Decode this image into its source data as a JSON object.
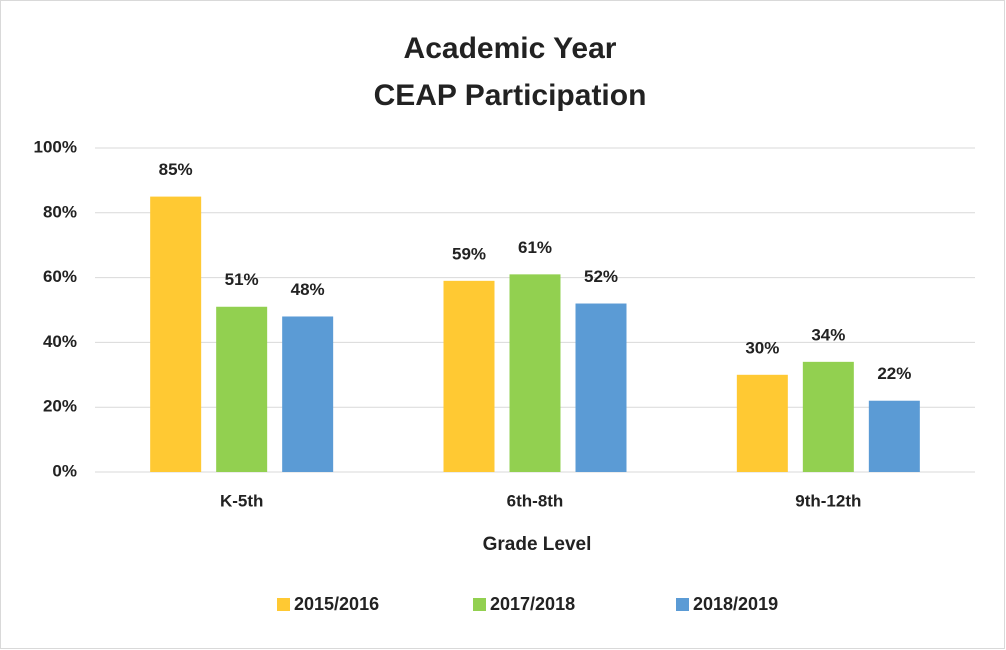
{
  "chart_data": {
    "type": "bar",
    "title": [
      "Academic Year",
      "CEAP Participation"
    ],
    "x_label": "Grade Level",
    "categories": [
      "K-5th",
      "6th-8th",
      "9th-12th"
    ],
    "series": [
      {
        "name": "2015/2016",
        "color": "#ffc933",
        "values": [
          85,
          59,
          30
        ],
        "value_labels": [
          "85%",
          "59%",
          "30%"
        ]
      },
      {
        "name": "2017/2018",
        "color": "#92d050",
        "values": [
          51,
          61,
          34
        ],
        "value_labels": [
          "51%",
          "61%",
          "34%"
        ]
      },
      {
        "name": "2018/2019",
        "color": "#5b9bd5",
        "values": [
          48,
          52,
          22
        ],
        "value_labels": [
          "48%",
          "52%",
          "22%"
        ]
      }
    ],
    "ylim": [
      0,
      100
    ],
    "yticks": [
      {
        "value": 0,
        "label": "0%"
      },
      {
        "value": 20,
        "label": "20%"
      },
      {
        "value": 40,
        "label": "40%"
      },
      {
        "value": 60,
        "label": "60%"
      },
      {
        "value": 80,
        "label": "80%"
      },
      {
        "value": 100,
        "label": "100%"
      }
    ],
    "grid": true,
    "legend": "bottom"
  }
}
